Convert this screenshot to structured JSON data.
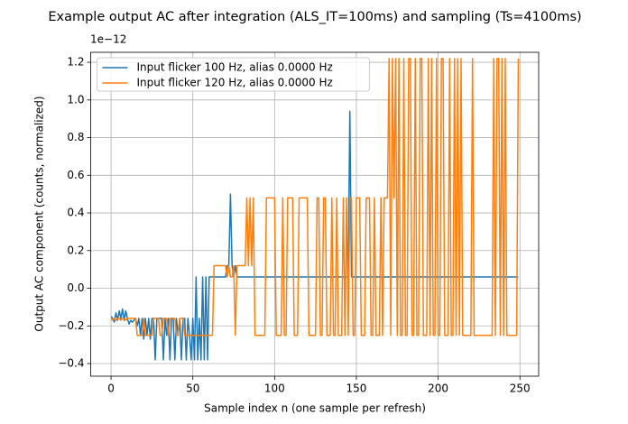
{
  "chart_data": {
    "type": "line",
    "title": "Example output AC after integration (ALS_IT=100ms) and sampling (Ts=4100ms)",
    "xlabel": "Sample index n (one sample per refresh)",
    "ylabel": "Output AC component (counts, normalized)",
    "y_offset_label": "1e−12",
    "xlim": [
      -12.45,
      261.45
    ],
    "ylim": [
      -0.467,
      1.253
    ],
    "xticks": [
      0,
      50,
      100,
      150,
      200,
      250
    ],
    "yticks": [
      {
        "value": -0.4,
        "label": "−0.4"
      },
      {
        "value": -0.2,
        "label": "−0.2"
      },
      {
        "value": 0,
        "label": "0.0"
      },
      0.2,
      0.4,
      0.6,
      0.8,
      {
        "value": 1,
        "label": "1.0"
      },
      1.2
    ],
    "grid": true,
    "legend": "upper left",
    "x": [
      0,
      1,
      2,
      3,
      4,
      5,
      6,
      7,
      8,
      9,
      10,
      11,
      12,
      13,
      14,
      15,
      16,
      17,
      18,
      19,
      20,
      21,
      22,
      23,
      24,
      25,
      26,
      27,
      28,
      29,
      30,
      31,
      32,
      33,
      34,
      35,
      36,
      37,
      38,
      39,
      40,
      41,
      42,
      43,
      44,
      45,
      46,
      47,
      48,
      49,
      50,
      51,
      52,
      53,
      54,
      55,
      56,
      57,
      58,
      59,
      60,
      61,
      62,
      63,
      64,
      65,
      66,
      67,
      68,
      69,
      70,
      71,
      72,
      73,
      74,
      75,
      76,
      77,
      78,
      79,
      80,
      81,
      82,
      83,
      84,
      85,
      86,
      87,
      88,
      89,
      90,
      91,
      92,
      93,
      94,
      95,
      96,
      97,
      98,
      99,
      100,
      101,
      102,
      103,
      104,
      105,
      106,
      107,
      108,
      109,
      110,
      111,
      112,
      113,
      114,
      115,
      116,
      117,
      118,
      119,
      120,
      121,
      122,
      123,
      124,
      125,
      126,
      127,
      128,
      129,
      130,
      131,
      132,
      133,
      134,
      135,
      136,
      137,
      138,
      139,
      140,
      141,
      142,
      143,
      144,
      145,
      146,
      147,
      148,
      149,
      150,
      151,
      152,
      153,
      154,
      155,
      156,
      157,
      158,
      159,
      160,
      161,
      162,
      163,
      164,
      165,
      166,
      167,
      168,
      169,
      170,
      171,
      172,
      173,
      174,
      175,
      176,
      177,
      178,
      179,
      180,
      181,
      182,
      183,
      184,
      185,
      186,
      187,
      188,
      189,
      190,
      191,
      192,
      193,
      194,
      195,
      196,
      197,
      198,
      199,
      200,
      201,
      202,
      203,
      204,
      205,
      206,
      207,
      208,
      209,
      210,
      211,
      212,
      213,
      214,
      215,
      216,
      217,
      218,
      219,
      220,
      221,
      222,
      223,
      224,
      225,
      226,
      227,
      228,
      229,
      230,
      231,
      232,
      233,
      234,
      235,
      236,
      237,
      238,
      239,
      240,
      241,
      242,
      243,
      244,
      245,
      246,
      247,
      248,
      249
    ],
    "series": [
      {
        "name": "Input flicker 100 Hz, alias 0.0000 Hz",
        "color": "#1f77b4",
        "values": [
          -0.15,
          -0.16,
          -0.18,
          -0.13,
          -0.17,
          -0.12,
          -0.16,
          -0.11,
          -0.17,
          -0.12,
          -0.16,
          -0.19,
          -0.17,
          -0.18,
          -0.17,
          -0.16,
          -0.2,
          -0.16,
          -0.25,
          -0.16,
          -0.27,
          -0.16,
          -0.25,
          -0.16,
          -0.27,
          -0.16,
          -0.16,
          -0.38,
          -0.16,
          -0.16,
          -0.16,
          -0.16,
          -0.38,
          -0.16,
          -0.25,
          -0.16,
          -0.38,
          -0.16,
          -0.16,
          -0.38,
          -0.16,
          -0.25,
          -0.16,
          -0.38,
          -0.16,
          -0.16,
          -0.38,
          -0.16,
          -0.25,
          -0.38,
          -0.16,
          -0.38,
          0.06,
          -0.38,
          -0.16,
          -0.38,
          0.06,
          -0.38,
          0.06,
          -0.38,
          0.06,
          0.06,
          0.06,
          0.06,
          0.06,
          0.06,
          0.06,
          0.06,
          0.06,
          0.06,
          0.06,
          0.12,
          0.12,
          0.5,
          0.12,
          0.06,
          0.12,
          0.06,
          0.06,
          0.06,
          0.06,
          0.06,
          0.06,
          0.06,
          0.06,
          0.06,
          0.06,
          0.06,
          0.06,
          0.06,
          0.06,
          0.06,
          0.06,
          0.06,
          0.06,
          0.06,
          0.06,
          0.06,
          0.06,
          0.06,
          0.06,
          0.06,
          0.06,
          0.06,
          0.06,
          0.06,
          0.06,
          0.06,
          0.06,
          0.06,
          0.06,
          0.06,
          0.06,
          0.06,
          0.06,
          0.06,
          0.06,
          0.06,
          0.06,
          0.06,
          0.06,
          0.06,
          0.06,
          0.06,
          0.06,
          0.06,
          0.06,
          0.06,
          0.06,
          0.06,
          0.06,
          0.06,
          0.06,
          0.06,
          0.06,
          0.06,
          0.06,
          0.06,
          0.06,
          0.06,
          0.06,
          0.06,
          0.06,
          0.06,
          0.06,
          0.06,
          0.94,
          0.06,
          0.06,
          0.06,
          0.06,
          0.06,
          0.06,
          0.06,
          0.06,
          0.06,
          0.06,
          0.06,
          0.06,
          0.06,
          0.06,
          0.06,
          0.06,
          0.06,
          0.06,
          0.06,
          0.06,
          0.06,
          0.06,
          0.06,
          0.06,
          0.06,
          0.06,
          0.06,
          0.06,
          0.06,
          0.06,
          0.06,
          0.06,
          0.06,
          0.06,
          0.06,
          0.06,
          0.06,
          0.06,
          0.06,
          0.06,
          0.06,
          0.06,
          0.06,
          0.06,
          0.06,
          0.06,
          0.06,
          0.06,
          0.06,
          0.06,
          0.06,
          0.06,
          0.06,
          0.06,
          0.06,
          0.06,
          0.06,
          0.06,
          0.06,
          0.06,
          0.06,
          0.06,
          0.06,
          0.06,
          0.06,
          0.06,
          0.06,
          0.06,
          0.06,
          0.06,
          0.06,
          0.06,
          0.06,
          0.06,
          0.06,
          0.06,
          0.06,
          0.06,
          0.06,
          0.06,
          0.06,
          0.06,
          0.06,
          0.06,
          0.06,
          0.06,
          0.06,
          0.06,
          0.06,
          0.06,
          0.06,
          0.06,
          0.06,
          0.06,
          0.06,
          0.06,
          0.06,
          0.06,
          0.06,
          0.06,
          0.06,
          0.06,
          0.06
        ]
      },
      {
        "name": "Input flicker 120 Hz, alias 0.0000 Hz",
        "color": "#ff7f0e",
        "values": [
          -0.16,
          -0.17,
          -0.16,
          -0.17,
          -0.16,
          -0.16,
          -0.17,
          -0.16,
          -0.16,
          -0.17,
          -0.16,
          -0.16,
          -0.16,
          -0.16,
          -0.16,
          -0.16,
          -0.25,
          -0.25,
          -0.25,
          -0.25,
          -0.16,
          -0.25,
          -0.25,
          -0.25,
          -0.25,
          -0.25,
          -0.16,
          -0.16,
          -0.16,
          -0.16,
          -0.25,
          -0.25,
          -0.16,
          -0.16,
          -0.16,
          -0.25,
          -0.16,
          -0.16,
          -0.16,
          -0.16,
          -0.25,
          -0.25,
          -0.16,
          -0.16,
          -0.16,
          -0.25,
          -0.25,
          -0.25,
          -0.25,
          -0.25,
          -0.25,
          -0.25,
          -0.25,
          -0.25,
          -0.25,
          -0.25,
          -0.25,
          -0.25,
          -0.25,
          -0.25,
          -0.25,
          -0.25,
          -0.25,
          0.12,
          0.12,
          0.12,
          0.12,
          0.12,
          0.12,
          0.12,
          0.12,
          0.06,
          0.12,
          0.06,
          0.06,
          0.12,
          -0.25,
          0.12,
          0.12,
          0.12,
          0.12,
          0.12,
          0.12,
          0.48,
          0.12,
          0.48,
          0.12,
          0.48,
          -0.25,
          -0.25,
          -0.25,
          -0.25,
          -0.25,
          -0.25,
          -0.25,
          0.48,
          0.48,
          0.48,
          0.48,
          0.48,
          0.48,
          -0.25,
          -0.25,
          -0.25,
          -0.25,
          0.48,
          -0.25,
          -0.25,
          0.48,
          0.48,
          0.48,
          0.48,
          -0.25,
          -0.25,
          -0.25,
          0.48,
          0.48,
          0.48,
          0.48,
          0.48,
          0.48,
          -0.25,
          -0.25,
          -0.25,
          -0.25,
          -0.25,
          0.48,
          0.48,
          -0.25,
          -0.25,
          0.48,
          0.48,
          -0.25,
          -0.25,
          -0.25,
          0.48,
          -0.25,
          -0.25,
          0.48,
          -0.25,
          -0.25,
          -0.25,
          0.48,
          -0.25,
          0.48,
          -0.25,
          0.48,
          0.48,
          -0.25,
          -0.25,
          0.48,
          0.48,
          0.48,
          -0.25,
          -0.25,
          -0.25,
          0.48,
          0.48,
          0.48,
          -0.25,
          -0.25,
          0.48,
          -0.25,
          -0.25,
          -0.25,
          0.48,
          -0.25,
          0.48,
          0.48,
          0.48,
          1.22,
          -0.25,
          1.22,
          0.48,
          1.22,
          -0.25,
          1.22,
          -0.25,
          -0.25,
          1.22,
          -0.25,
          -0.25,
          1.22,
          1.22,
          -0.25,
          -0.25,
          1.22,
          -0.25,
          -0.25,
          1.22,
          1.22,
          -0.25,
          -0.25,
          -0.25,
          1.22,
          -0.25,
          1.22,
          -0.25,
          -0.25,
          1.22,
          -0.25,
          -0.25,
          1.22,
          1.22,
          -0.25,
          -0.25,
          -0.25,
          1.22,
          -0.25,
          -0.25,
          1.22,
          -0.25,
          1.22,
          -0.25,
          1.22,
          -0.25,
          -0.25,
          -0.25,
          -0.25,
          -0.25,
          -0.25,
          1.22,
          -0.25,
          -0.25,
          -0.25,
          -0.25,
          -0.25,
          -0.25,
          -0.25,
          -0.25,
          -0.25,
          -0.25,
          -0.25,
          -0.25,
          1.22,
          -0.25,
          1.22,
          1.22,
          -0.25,
          1.22,
          -0.25,
          1.22,
          -0.25,
          -0.25,
          -0.25,
          -0.25,
          -0.25,
          -0.25,
          -0.25,
          1.22
        ]
      }
    ]
  }
}
